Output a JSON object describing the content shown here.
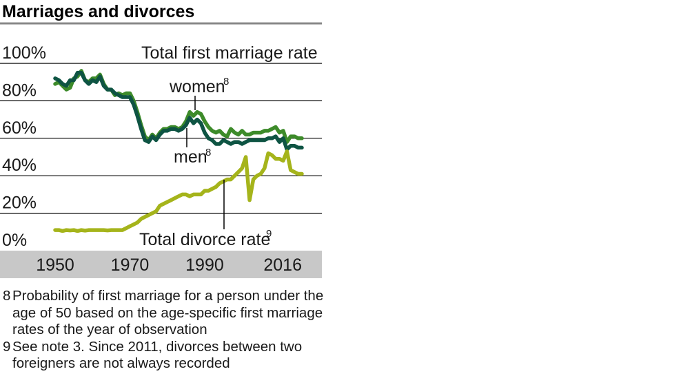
{
  "title": "Marriages and divorces",
  "colors": {
    "women": "#3d8b2a",
    "men": "#0e5443",
    "divorce": "#a5b41b",
    "grid": "#000000",
    "axis_band": "#c8c8c8",
    "title_rule": "#888888"
  },
  "labels": {
    "marriage_series": "Total first marriage rate",
    "women": "women",
    "women_sup": "8",
    "men": "men",
    "men_sup": "8",
    "divorce_series": "Total divorce rate",
    "divorce_sup": "9"
  },
  "notes": [
    {
      "num": "8",
      "text": "Probability of first marriage for a person under the age of 50 based on the age-specific first marriage rates of the year of observation"
    },
    {
      "num": "9",
      "text": "See note 3. Since 2011, divorces between two foreigners are not always recorded"
    }
  ],
  "chart_data": {
    "type": "line",
    "title": "Marriages and divorces",
    "xlabel": "",
    "ylabel": "",
    "xlim": [
      1950,
      2016
    ],
    "ylim": [
      0,
      100
    ],
    "x_ticks": [
      1950,
      1970,
      1990,
      2016
    ],
    "y_ticks": [
      0,
      20,
      40,
      60,
      80,
      100
    ],
    "y_tick_labels": [
      "0%",
      "20%",
      "40%",
      "60%",
      "80%",
      "100%"
    ],
    "grid": true,
    "x": [
      1950,
      1951,
      1952,
      1953,
      1954,
      1955,
      1956,
      1957,
      1958,
      1959,
      1960,
      1961,
      1962,
      1963,
      1964,
      1965,
      1966,
      1967,
      1968,
      1969,
      1970,
      1971,
      1972,
      1973,
      1974,
      1975,
      1976,
      1977,
      1978,
      1979,
      1980,
      1981,
      1982,
      1983,
      1984,
      1985,
      1986,
      1987,
      1988,
      1989,
      1990,
      1991,
      1992,
      1993,
      1994,
      1995,
      1996,
      1997,
      1998,
      1999,
      2000,
      2001,
      2002,
      2003,
      2004,
      2005,
      2006,
      2007,
      2008,
      2009,
      2010,
      2011,
      2012,
      2013,
      2014,
      2015,
      2016
    ],
    "series": [
      {
        "name": "women",
        "values": [
          89,
          90,
          88,
          86,
          87,
          92,
          93,
          96,
          91,
          90,
          92,
          92,
          94,
          89,
          86,
          86,
          83,
          84,
          83,
          84,
          84,
          80,
          74,
          67,
          61,
          59,
          62,
          60,
          63,
          65,
          65,
          66,
          66,
          65,
          66,
          69,
          74,
          72,
          74,
          73,
          69,
          66,
          64,
          63,
          64,
          62,
          61,
          65,
          63,
          62,
          64,
          62,
          62,
          63,
          63,
          63,
          64,
          64,
          65,
          66,
          63,
          64,
          58,
          61,
          61,
          60,
          60
        ]
      },
      {
        "name": "men",
        "values": [
          92,
          91,
          89,
          88,
          91,
          91,
          95,
          95,
          91,
          89,
          91,
          90,
          93,
          88,
          86,
          86,
          84,
          83,
          82,
          82,
          82,
          78,
          72,
          65,
          59,
          58,
          61,
          59,
          62,
          64,
          64,
          65,
          65,
          64,
          65,
          67,
          71,
          68,
          70,
          68,
          63,
          60,
          59,
          57,
          57,
          59,
          58,
          57,
          58,
          58,
          57,
          58,
          59,
          59,
          59,
          59,
          59,
          60,
          60,
          61,
          58,
          60,
          54,
          56,
          56,
          55,
          55
        ]
      },
      {
        "name": "Total divorce rate",
        "values": [
          11,
          11,
          10.5,
          11,
          10.8,
          11,
          10.5,
          11,
          10.7,
          11,
          11,
          11,
          11,
          11,
          10.8,
          11,
          11,
          11,
          11,
          12,
          13,
          14,
          15,
          17,
          18,
          19,
          20,
          21,
          24,
          25,
          26,
          27,
          28,
          29,
          30,
          30,
          29,
          30,
          30,
          30,
          32,
          32,
          33,
          34,
          36,
          37,
          38,
          38,
          40,
          42,
          44,
          50,
          27,
          38,
          40,
          41,
          44,
          52,
          51,
          49,
          49,
          48,
          53,
          43,
          42,
          41,
          41
        ]
      }
    ]
  }
}
